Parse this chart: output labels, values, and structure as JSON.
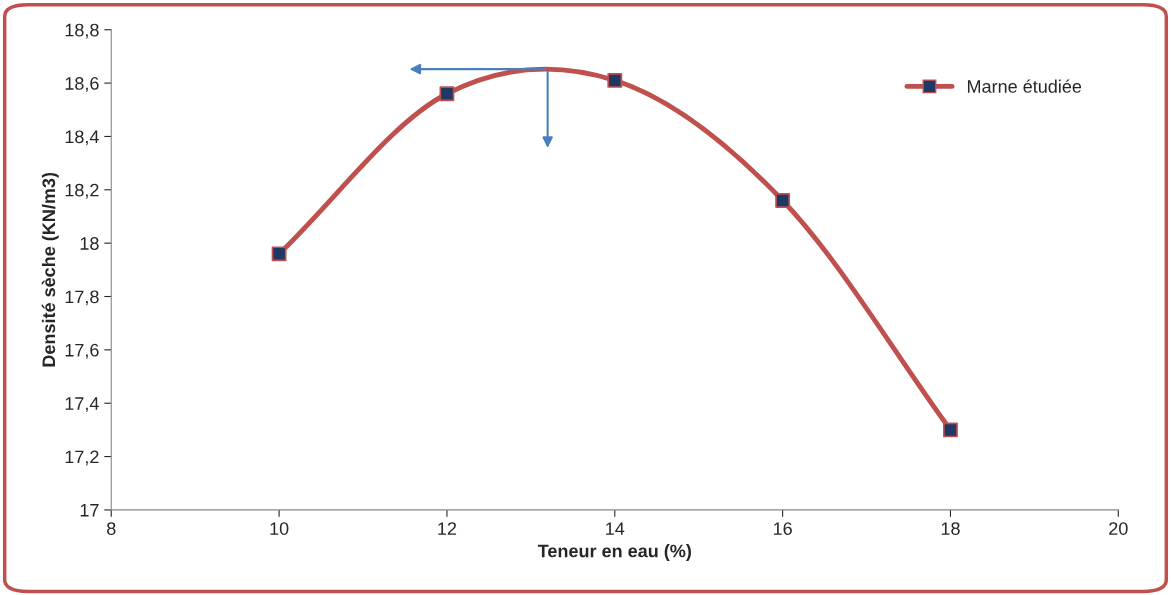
{
  "chart_data": {
    "type": "line",
    "xlabel": "Teneur en eau (%)",
    "ylabel": "Densité sèche (KN/m3)",
    "x": [
      10,
      12,
      14,
      16,
      18
    ],
    "series": [
      {
        "name": "Marne étudiée",
        "color": "#c0504d",
        "values": [
          17.96,
          18.56,
          18.61,
          18.16,
          17.3
        ]
      }
    ],
    "xlim": [
      8,
      20
    ],
    "xticks": [
      8,
      10,
      12,
      14,
      16,
      18,
      20
    ],
    "ylim": [
      17,
      18.8
    ],
    "yticks": [
      {
        "value": 17,
        "label": "17"
      },
      {
        "value": 17.2,
        "label": "17,2"
      },
      {
        "value": 17.4,
        "label": "17,4"
      },
      {
        "value": 17.6,
        "label": "17,6"
      },
      {
        "value": 17.8,
        "label": "17,8"
      },
      {
        "value": 18,
        "label": "18"
      },
      {
        "value": 18.2,
        "label": "18,2"
      },
      {
        "value": 18.4,
        "label": "18,4"
      },
      {
        "value": 18.6,
        "label": "18,6"
      },
      {
        "value": 18.8,
        "label": "18,8"
      }
    ],
    "marker": "square",
    "line_style": "solid",
    "grid": false,
    "legend": "top right"
  }
}
